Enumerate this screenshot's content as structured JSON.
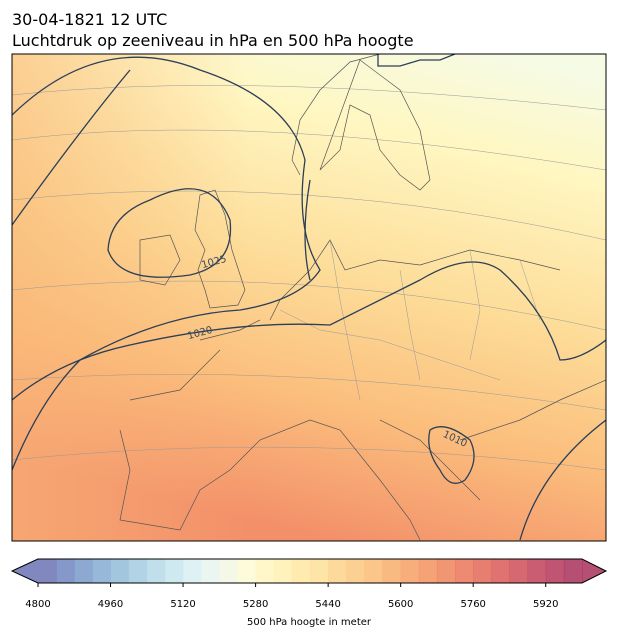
{
  "header": {
    "title": "30-04-1821 12 UTC",
    "subtitle": "Luchtdruk op zeeniveau in hPa en 500 hPa hoogte"
  },
  "map": {
    "contour_labels": [
      "1025",
      "1020",
      "1010"
    ]
  },
  "colorbar": {
    "label": "500 hPa hoogte in meter",
    "vlim": [
      4800,
      6000
    ],
    "ticks": [
      4800,
      4960,
      5120,
      5280,
      5440,
      5600,
      5760,
      5920
    ],
    "colors": [
      "#6b72b4",
      "#7086bf",
      "#7a9ac9",
      "#86acd2",
      "#93bcd9",
      "#a3cbe0",
      "#b5d9e8",
      "#c7e5ee",
      "#d8eff2",
      "#e7f5ef",
      "#f2f8e3",
      "#fbfad3",
      "#fff6c0",
      "#fff0b0",
      "#ffe8a2",
      "#fedf96",
      "#fdd48a",
      "#fcc87f",
      "#fbbc75",
      "#f8ae6c",
      "#f6a065",
      "#f3925f",
      "#ef845b",
      "#ea7658",
      "#e36858",
      "#da5a58",
      "#cf4d59",
      "#c2415a",
      "#b5375b",
      "#a8305c"
    ]
  }
}
